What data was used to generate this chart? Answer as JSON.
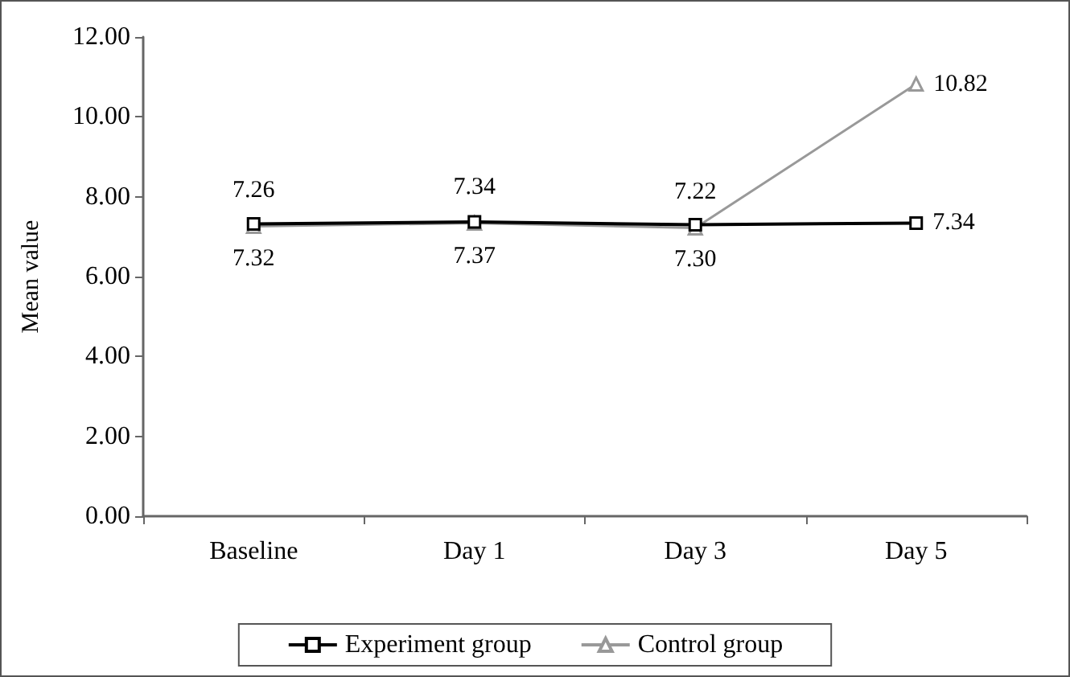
{
  "chart_data": {
    "type": "line",
    "ylabel": "Mean value",
    "categories": [
      "Baseline",
      "Day 1",
      "Day 3",
      "Day 5"
    ],
    "series": [
      {
        "name": "Experiment group",
        "color": "#000000",
        "marker": "square",
        "values": [
          7.32,
          7.37,
          7.3,
          7.34
        ],
        "value_labels": [
          "7.32",
          "7.37",
          "7.30",
          "7.34"
        ]
      },
      {
        "name": "Control group",
        "color": "#999999",
        "marker": "triangle",
        "values": [
          7.26,
          7.34,
          7.22,
          10.82
        ],
        "value_labels": [
          "7.26",
          "7.34",
          "7.22",
          "10.82"
        ]
      }
    ],
    "ylim": [
      0,
      12
    ],
    "yticks": [
      {
        "value": 0,
        "label": "0.00"
      },
      {
        "value": 2,
        "label": "2.00"
      },
      {
        "value": 4,
        "label": "4.00"
      },
      {
        "value": 6,
        "label": "6.00"
      },
      {
        "value": 8,
        "label": "8.00"
      },
      {
        "value": 10,
        "label": "10.00"
      },
      {
        "value": 12,
        "label": "12.00"
      }
    ],
    "grid": false,
    "legend": "bottom",
    "line_style": "solid"
  }
}
